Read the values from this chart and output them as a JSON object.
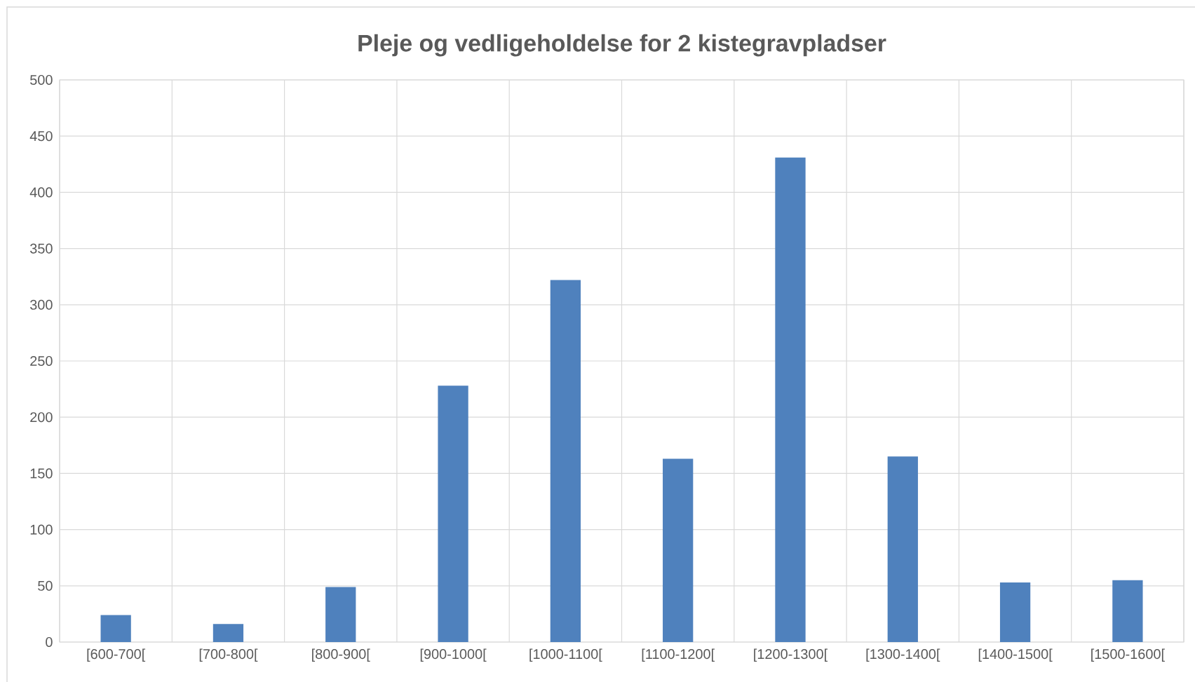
{
  "chart_data": {
    "type": "bar",
    "title": "Pleje og vedligeholdelse for 2 kistegravpladser",
    "categories": [
      "[600-700[",
      "[700-800[",
      "[800-900[",
      "[900-1000[",
      "[1000-1100[",
      "[1100-1200[",
      "[1200-1300[",
      "[1300-1400[",
      "[1400-1500[",
      "[1500-1600["
    ],
    "values": [
      24,
      16,
      49,
      228,
      322,
      163,
      431,
      165,
      53,
      55
    ],
    "color": "#4f81bd",
    "ylim": [
      0,
      500
    ],
    "yticks": [
      0,
      50,
      100,
      150,
      200,
      250,
      300,
      350,
      400,
      450,
      500
    ],
    "grid": true
  }
}
